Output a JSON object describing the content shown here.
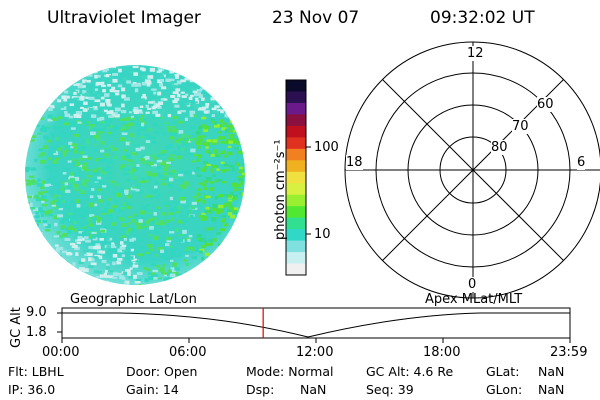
{
  "header": {
    "title": "Ultraviolet Imager",
    "date": "23 Nov 07",
    "time": "09:32:02 UT"
  },
  "colorbar": {
    "label": "photon cm⁻²s⁻¹",
    "ticks": [
      "100",
      "10"
    ],
    "colors": [
      "#0a0a2a",
      "#2a1050",
      "#6a1a8a",
      "#8a1040",
      "#c01020",
      "#e03020",
      "#f08020",
      "#f0b020",
      "#f0e040",
      "#d8f040",
      "#9af030",
      "#50e830",
      "#30e090",
      "#30d8c8",
      "#80e0e0",
      "#c8f0f0",
      "#f0f0f0"
    ]
  },
  "polar": {
    "mlt_labels": [
      "12",
      "6",
      "0",
      "18"
    ],
    "lat_labels": [
      "60",
      "70",
      "80"
    ]
  },
  "timeline": {
    "left_label": "Geographic Lat/Lon",
    "right_label": "Apex MLat/MLT",
    "y_axis_label": "GC Alt",
    "y_ticks": [
      "9.0",
      "1.8"
    ],
    "x_ticks": [
      "00:00",
      "06:00",
      "12:00",
      "18:00",
      "23:59"
    ],
    "current_time_fraction": 0.396
  },
  "status": {
    "flt": "Flt: LBHL",
    "ip": "IP: 36.0",
    "door": "Door: Open",
    "gain": "Gain: 14",
    "mode": "Mode: Normal",
    "dsp": "Dsp:",
    "dsp_val": "NaN",
    "gcalt": "GC Alt: 4.6 Re",
    "seq": "Seq: 39",
    "glat": "GLat:",
    "glat_val": "NaN",
    "glon": "GLon:",
    "glon_val": "NaN"
  }
}
